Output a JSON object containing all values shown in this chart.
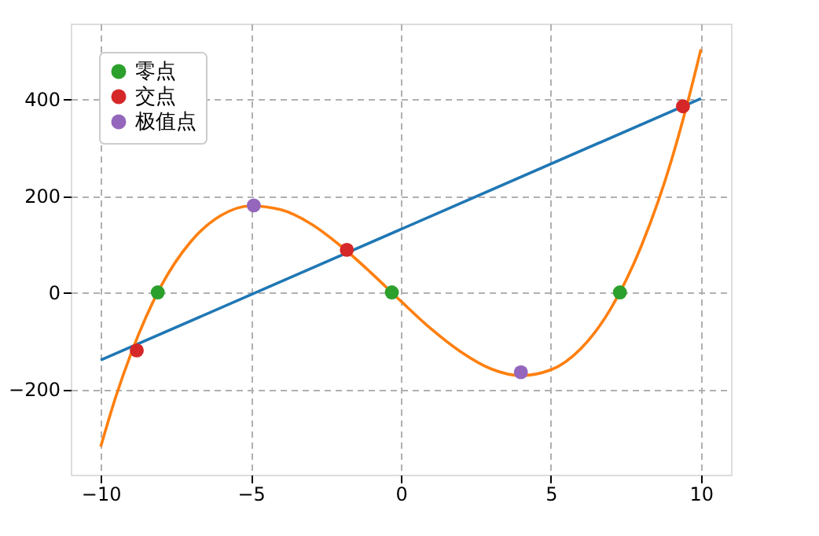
{
  "chart_data": {
    "type": "line",
    "xlim": [
      -11,
      11
    ],
    "ylim": [
      -377,
      556
    ],
    "xticks": [
      -10,
      -5,
      0,
      5,
      10
    ],
    "yticks": [
      -200,
      0,
      200,
      400
    ],
    "grid": true,
    "legend": "top left",
    "marker": "none",
    "line_style": "solid",
    "series": [
      {
        "color": "#1f77b4",
        "x": [
          -10,
          10
        ],
        "values": [
          -140,
          401
        ]
      },
      {
        "color": "#ff7f0e",
        "x": [
          -10,
          -9.5,
          -9,
          -8,
          -7,
          -6,
          -5,
          -4,
          -3,
          -2,
          -1,
          0,
          1,
          2,
          3,
          4,
          5,
          6,
          7,
          8,
          9,
          9.5,
          10
        ],
        "values": [
          -319,
          -216,
          -128,
          12,
          105,
          159,
          179,
          171,
          142,
          96,
          41,
          -18,
          -75,
          -123,
          -158,
          -172,
          -160,
          -116,
          -33,
          94,
          270,
          380,
          503
        ]
      },
      {
        "type": "scatter",
        "name": "零点",
        "color": "#2ca02c",
        "marker": "circle",
        "x": [
          -8.1,
          -0.3,
          7.3
        ],
        "values": [
          0,
          0,
          0
        ]
      },
      {
        "type": "scatter",
        "name": "交点",
        "color": "#d62728",
        "marker": "circle",
        "x": [
          -8.8,
          -1.8,
          9.4
        ],
        "values": [
          -120,
          88,
          385
        ]
      },
      {
        "type": "scatter",
        "name": "极值点",
        "color": "#9467bd",
        "marker": "circle",
        "x": [
          -4.9,
          4
        ],
        "values": [
          180,
          -165
        ]
      }
    ]
  }
}
